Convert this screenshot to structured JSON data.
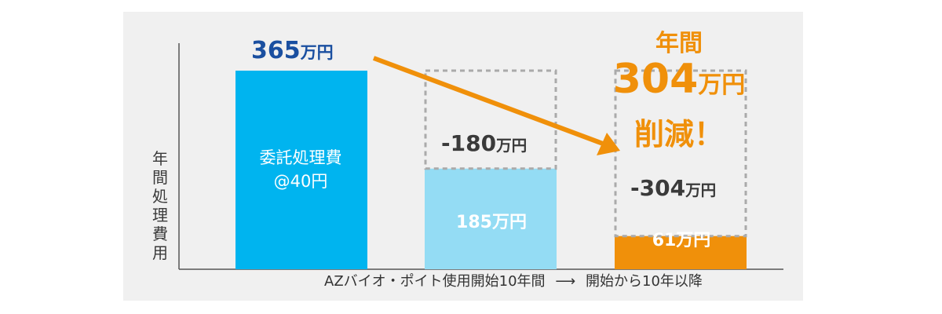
{
  "colors": {
    "panel_bg": "#f0f0f0",
    "bar1": "#00b4ef",
    "bar2": "#94dcf4",
    "bar3": "#f0900a",
    "arrow": "#f0900a",
    "dashed": "#aaaaaa",
    "title_blue": "#1a4fa0",
    "text_dark": "#3a3a3a"
  },
  "chart_data": {
    "type": "bar",
    "ylabel": "年間処理費用",
    "xlabel": "AZバイオ・ポイト使用開始10年間 ⟶ 開始から10年以降",
    "ylim": [
      0,
      400
    ],
    "categories": [
      "",
      "",
      ""
    ],
    "series": [
      {
        "values": [
          365,
          185,
          61
        ]
      }
    ],
    "bar_labels": [
      "委託処理費\n@40円",
      "185万円",
      "61万円"
    ],
    "top_label": "365万円",
    "reductions": [
      {
        "value": -180,
        "label": "-180万円"
      },
      {
        "value": -304,
        "label": "-304万円"
      }
    ],
    "annotation": {
      "line1": "年間",
      "number": "304",
      "unit": "万円",
      "line3": "削減！"
    }
  },
  "ui": {
    "bar1_line1": "委託処理費",
    "bar1_line2": "@40円",
    "bar2_label": "185万円",
    "bar3_label": "61万円",
    "top_value": "365",
    "top_unit": "万円",
    "diff1_value": "-180",
    "diff1_unit": "万円",
    "diff2_value": "-304",
    "diff2_unit": "万円",
    "ylabel_chars": [
      "年",
      "間",
      "処",
      "理",
      "費",
      "用"
    ],
    "xcap_left": "AZバイオ・ポイト使用開始10年間",
    "xcap_arrow": "⟶",
    "xcap_right": "開始から10年以降"
  }
}
